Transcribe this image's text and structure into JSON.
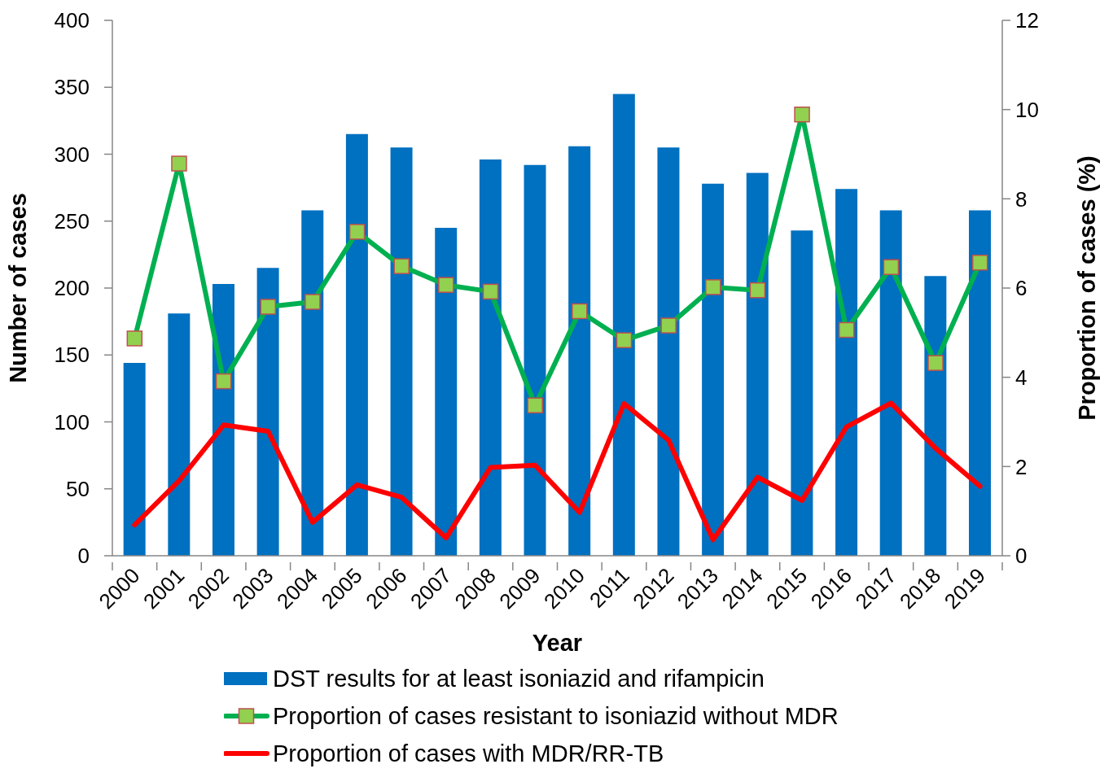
{
  "chart_data": {
    "type": "bar",
    "xlabel": "Year",
    "ylabel": "Number of cases",
    "y2label": "Proportion of cases (%)",
    "categories": [
      "2000",
      "2001",
      "2002",
      "2003",
      "2004",
      "2005",
      "2006",
      "2007",
      "2008",
      "2009",
      "2010",
      "2011",
      "2012",
      "2013",
      "2014",
      "2015",
      "2016",
      "2017",
      "2018",
      "2019"
    ],
    "series": [
      {
        "name": "DST results for at least isoniazid and rifampicin",
        "color": "#0070c0",
        "values": [
          144,
          181,
          203,
          215,
          258,
          315,
          305,
          245,
          296,
          292,
          306,
          345,
          305,
          278,
          286,
          243,
          274,
          258,
          209,
          258
        ]
      },
      {
        "name": "Proportion of cases resistant to isoniazid without MDR",
        "type": "line",
        "axis": "y2",
        "color": "#00b050",
        "marker": "square",
        "values": [
          4.87,
          8.79,
          3.91,
          5.58,
          5.69,
          7.26,
          6.49,
          6.07,
          5.92,
          3.37,
          5.48,
          4.83,
          5.16,
          6.02,
          5.95,
          9.89,
          5.06,
          6.47,
          4.32,
          6.57
        ]
      },
      {
        "name": "Proportion of cases with MDR/RR-TB",
        "type": "line",
        "axis": "y2",
        "color": "#ff0000",
        "marker": "none",
        "values": [
          0.69,
          1.68,
          2.93,
          2.79,
          0.75,
          1.59,
          1.31,
          0.4,
          1.98,
          2.03,
          0.97,
          3.41,
          2.59,
          0.36,
          1.76,
          1.24,
          2.89,
          3.42,
          2.41,
          1.56
        ]
      }
    ],
    "ylim": [
      0,
      400
    ],
    "yticks": [
      0,
      50,
      100,
      150,
      200,
      250,
      300,
      350,
      400
    ],
    "y2lim": [
      0,
      12
    ],
    "y2ticks": [
      0,
      2,
      4,
      6,
      8,
      10,
      12
    ],
    "legend": "bottom"
  }
}
